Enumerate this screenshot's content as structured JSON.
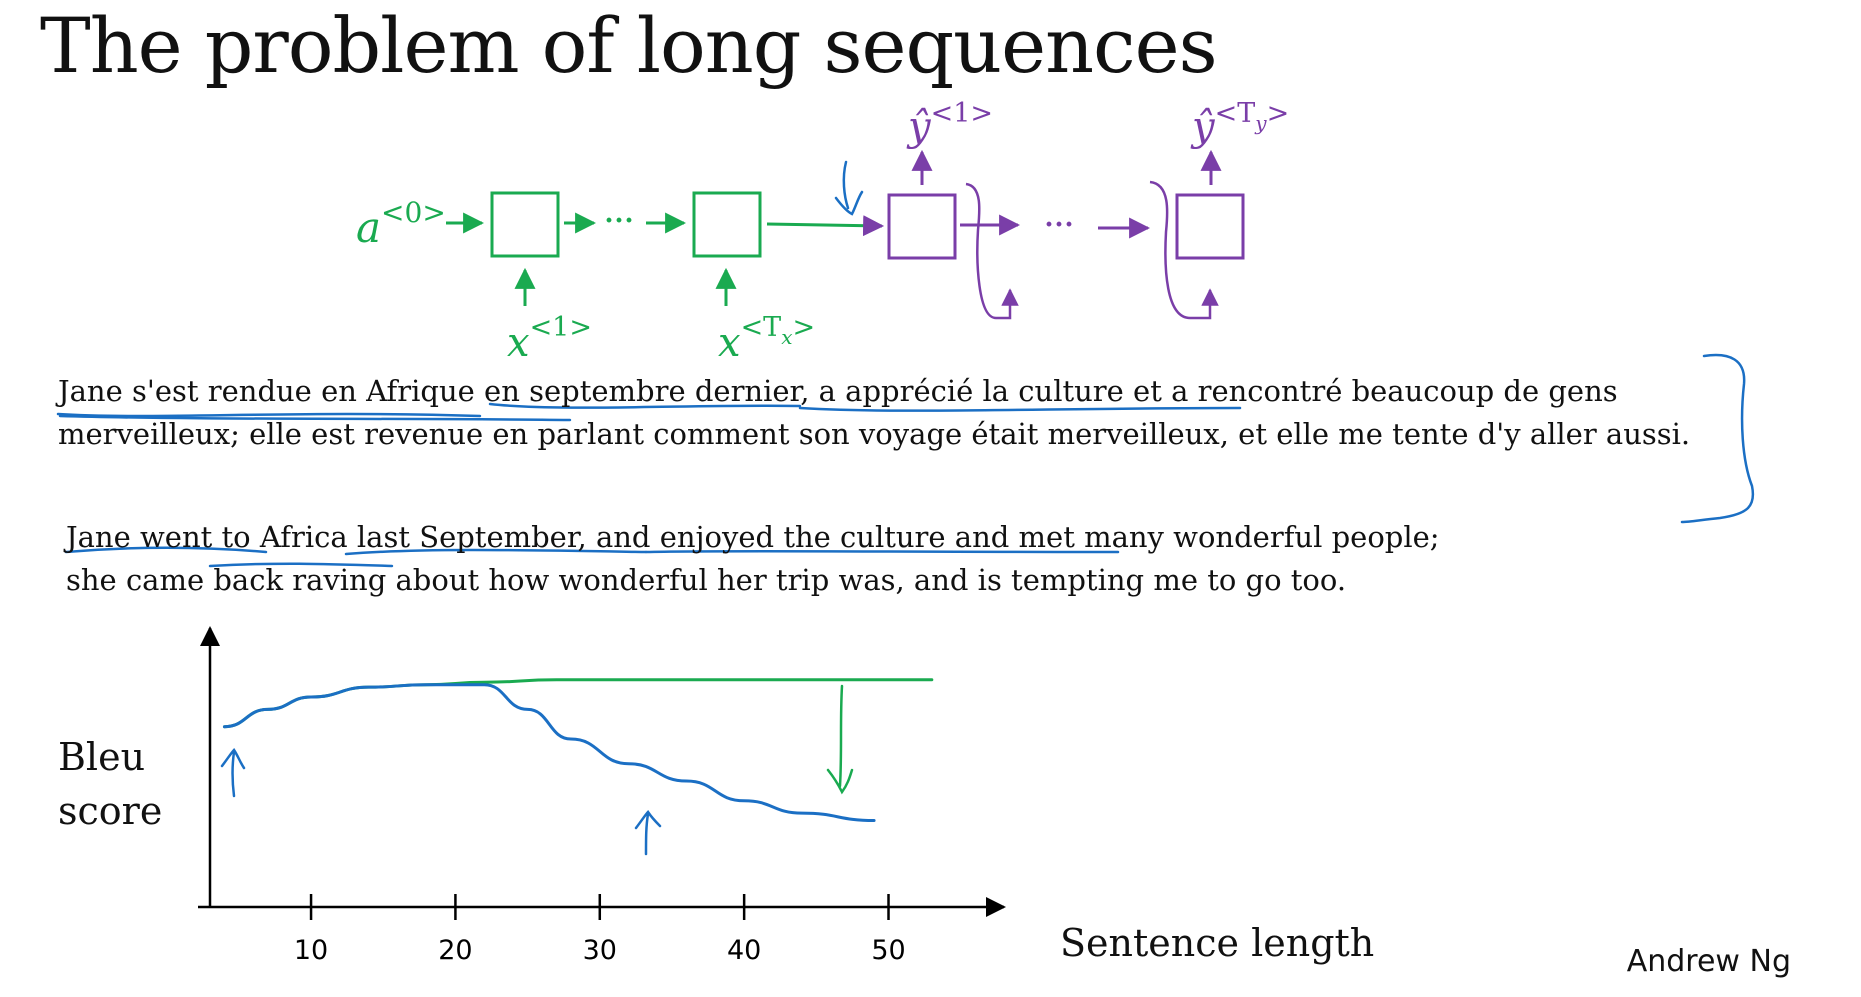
{
  "title": "The problem of long sequences",
  "diagram": {
    "initial_activation": {
      "base": "a",
      "sup": "<0>"
    },
    "encoder_inputs": [
      {
        "base": "x",
        "sup": "<1>"
      },
      {
        "base": "x",
        "sup_open": "<T",
        "sup_sub": "x",
        "sup_close": ">"
      }
    ],
    "decoder_outputs": [
      {
        "base": "ŷ",
        "sup": "<1>"
      },
      {
        "base": "ŷ",
        "sup_open": "<T",
        "sup_sub": "y",
        "sup_close": ">"
      }
    ],
    "ellipsis": "···",
    "encoder_color": "#1aaa50",
    "decoder_color": "#7a3ea8",
    "annotation_color": "#1b6fc4"
  },
  "french_text": "Jane s'est rendue en Afrique en septembre dernier, a apprécié la culture et a rencontré beaucoup de gens merveilleux; elle est revenue en parlant comment son voyage était merveilleux, et elle me tente d'y aller aussi.",
  "english_lines": [
    "Jane went to Africa last September, and enjoyed the culture and met many wonderful people;",
    "she came back raving about how wonderful her trip was, and is tempting me to go too."
  ],
  "chart_data": {
    "type": "line",
    "ylabel": "Bleu score",
    "xlabel": "Sentence length",
    "x_ticks": [
      "10",
      "20",
      "30",
      "40",
      "50"
    ],
    "xlim": [
      3,
      58
    ],
    "ylim": [
      0,
      1
    ],
    "y_ticks_shown": false,
    "grid": false,
    "series": [
      {
        "color": "#1aaa50",
        "x": [
          4,
          7,
          10,
          14,
          18,
          22,
          27,
          32,
          38,
          44,
          50,
          53
        ],
        "y": [
          0.73,
          0.8,
          0.85,
          0.89,
          0.9,
          0.91,
          0.92,
          0.92,
          0.92,
          0.92,
          0.92,
          0.92
        ]
      },
      {
        "color": "#1b6fc4",
        "x": [
          4,
          7,
          10,
          14,
          18,
          22,
          25,
          28,
          32,
          36,
          40,
          44,
          49
        ],
        "y": [
          0.73,
          0.8,
          0.85,
          0.89,
          0.9,
          0.9,
          0.8,
          0.68,
          0.58,
          0.51,
          0.43,
          0.38,
          0.35
        ]
      }
    ]
  },
  "author": "Andrew Ng"
}
